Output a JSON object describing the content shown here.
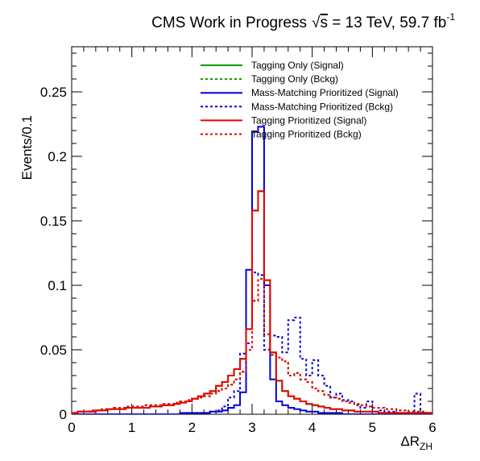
{
  "chart_data": {
    "type": "line",
    "title": "CMS Work in Progress",
    "title_energy_prefix": "√",
    "title_energy_var": "s",
    "title_energy_value": " = 13 TeV, 59.7 fb",
    "title_energy_sup": "-1",
    "xlabel_main": "ΔR",
    "xlabel_sub": "ZH",
    "ylabel": "Events/0.1",
    "xlim": [
      0,
      6
    ],
    "ylim": [
      0,
      0.285
    ],
    "xticks": [
      "0",
      "1",
      "2",
      "3",
      "4",
      "5",
      "6"
    ],
    "yticks": [
      "0",
      "0.05",
      "0.1",
      "0.15",
      "0.2",
      "0.25"
    ],
    "ytick_values": [
      0,
      0.05,
      0.1,
      0.15,
      0.2,
      0.25
    ],
    "grid": false,
    "legend_position": "top-right",
    "bin_width": 0.1,
    "x": [
      0.0,
      0.1,
      0.2,
      0.3,
      0.4,
      0.5,
      0.6,
      0.7,
      0.8,
      0.9,
      1.0,
      1.1,
      1.2,
      1.3,
      1.4,
      1.5,
      1.6,
      1.7,
      1.8,
      1.9,
      2.0,
      2.1,
      2.2,
      2.3,
      2.4,
      2.5,
      2.6,
      2.7,
      2.8,
      2.9,
      3.0,
      3.1,
      3.2,
      3.3,
      3.4,
      3.5,
      3.6,
      3.7,
      3.8,
      3.9,
      4.0,
      4.1,
      4.2,
      4.3,
      4.4,
      4.5,
      4.6,
      4.7,
      4.8,
      4.9,
      5.0,
      5.1,
      5.2,
      5.3,
      5.4,
      5.5,
      5.6,
      5.7,
      5.8,
      5.9
    ],
    "series": [
      {
        "name": "Tagging Only (Signal)",
        "color": "#009900",
        "dashed": false,
        "values": [
          0.001,
          0.002,
          0.002,
          0.002,
          0.003,
          0.003,
          0.004,
          0.004,
          0.004,
          0.005,
          0.005,
          0.005,
          0.005,
          0.006,
          0.006,
          0.007,
          0.007,
          0.008,
          0.009,
          0.01,
          0.012,
          0.014,
          0.016,
          0.018,
          0.022,
          0.025,
          0.03,
          0.035,
          0.043,
          0.066,
          0.158,
          0.173,
          0.104,
          0.048,
          0.026,
          0.018,
          0.014,
          0.012,
          0.01,
          0.008,
          0.007,
          0.006,
          0.005,
          0.004,
          0.004,
          0.003,
          0.003,
          0.002,
          0.002,
          0.002,
          0.002,
          0.001,
          0.001,
          0.001,
          0.001,
          0.001,
          0.001,
          0.001,
          0.001,
          0.001
        ]
      },
      {
        "name": "Tagging Only (Bckg)",
        "color": "#009900",
        "dashed": true,
        "values": [
          0.001,
          0.002,
          0.002,
          0.003,
          0.003,
          0.004,
          0.004,
          0.005,
          0.005,
          0.006,
          0.006,
          0.006,
          0.007,
          0.007,
          0.007,
          0.008,
          0.008,
          0.009,
          0.01,
          0.011,
          0.012,
          0.013,
          0.014,
          0.016,
          0.018,
          0.02,
          0.023,
          0.027,
          0.033,
          0.05,
          0.088,
          0.105,
          0.062,
          0.046,
          0.044,
          0.041,
          0.03,
          0.032,
          0.027,
          0.025,
          0.02,
          0.018,
          0.015,
          0.013,
          0.012,
          0.01,
          0.009,
          0.008,
          0.007,
          0.006,
          0.005,
          0.005,
          0.004,
          0.004,
          0.003,
          0.003,
          0.002,
          0.002,
          0.002,
          0.001
        ]
      },
      {
        "name": "Mass-Matching Prioritized (Signal)",
        "color": "#0000dd",
        "dashed": false,
        "values": [
          0.0,
          0.0,
          0.0,
          0.0,
          0.0,
          0.0,
          0.0,
          0.0,
          0.0,
          0.0,
          0.0,
          0.0,
          0.0,
          0.0,
          0.0,
          0.0,
          0.0,
          0.0,
          0.001,
          0.001,
          0.001,
          0.001,
          0.001,
          0.002,
          0.002,
          0.003,
          0.005,
          0.007,
          0.017,
          0.112,
          0.219,
          0.223,
          0.1,
          0.027,
          0.01,
          0.007,
          0.005,
          0.004,
          0.003,
          0.002,
          0.002,
          0.001,
          0.001,
          0.001,
          0.001,
          0.0,
          0.0,
          0.0,
          0.0,
          0.0,
          0.0,
          0.0,
          0.0,
          0.0,
          0.0,
          0.0,
          0.0,
          0.0,
          0.0,
          0.0
        ]
      },
      {
        "name": "Mass-Matching Prioritized (Bckg)",
        "color": "#0000dd",
        "dashed": true,
        "values": [
          0.0,
          0.0,
          0.0,
          0.0,
          0.0,
          0.0,
          0.0,
          0.0,
          0.0,
          0.0,
          0.0,
          0.0,
          0.0,
          0.0,
          0.0,
          0.0,
          0.0,
          0.0,
          0.0,
          0.001,
          0.001,
          0.001,
          0.001,
          0.002,
          0.003,
          0.006,
          0.013,
          0.018,
          0.047,
          0.055,
          0.11,
          0.108,
          0.05,
          0.061,
          0.06,
          0.048,
          0.073,
          0.075,
          0.043,
          0.03,
          0.042,
          0.03,
          0.022,
          0.013,
          0.016,
          0.011,
          0.01,
          0.007,
          0.005,
          0.01,
          0.002,
          0.003,
          0.002,
          0.002,
          0.001,
          0.001,
          0.001,
          0.016,
          0.001,
          0.001
        ]
      },
      {
        "name": "Tagging Prioritized (Signal)",
        "color": "#ee0000",
        "dashed": false,
        "values": [
          0.001,
          0.002,
          0.002,
          0.002,
          0.003,
          0.003,
          0.004,
          0.004,
          0.004,
          0.005,
          0.005,
          0.005,
          0.005,
          0.006,
          0.006,
          0.007,
          0.007,
          0.008,
          0.009,
          0.01,
          0.012,
          0.014,
          0.016,
          0.018,
          0.022,
          0.025,
          0.03,
          0.035,
          0.043,
          0.066,
          0.158,
          0.173,
          0.104,
          0.048,
          0.026,
          0.018,
          0.014,
          0.012,
          0.01,
          0.008,
          0.007,
          0.006,
          0.005,
          0.004,
          0.004,
          0.003,
          0.003,
          0.002,
          0.002,
          0.002,
          0.002,
          0.001,
          0.001,
          0.001,
          0.001,
          0.001,
          0.001,
          0.001,
          0.001,
          0.001
        ]
      },
      {
        "name": "Tagging Prioritized (Bckg)",
        "color": "#ee0000",
        "dashed": true,
        "values": [
          0.001,
          0.002,
          0.002,
          0.003,
          0.003,
          0.004,
          0.004,
          0.005,
          0.005,
          0.006,
          0.006,
          0.006,
          0.007,
          0.007,
          0.007,
          0.008,
          0.008,
          0.009,
          0.01,
          0.011,
          0.012,
          0.013,
          0.014,
          0.016,
          0.018,
          0.02,
          0.023,
          0.027,
          0.033,
          0.05,
          0.088,
          0.105,
          0.062,
          0.046,
          0.044,
          0.041,
          0.03,
          0.032,
          0.027,
          0.025,
          0.02,
          0.018,
          0.015,
          0.013,
          0.012,
          0.01,
          0.009,
          0.008,
          0.007,
          0.006,
          0.005,
          0.005,
          0.004,
          0.004,
          0.003,
          0.003,
          0.002,
          0.002,
          0.002,
          0.001
        ]
      }
    ]
  }
}
